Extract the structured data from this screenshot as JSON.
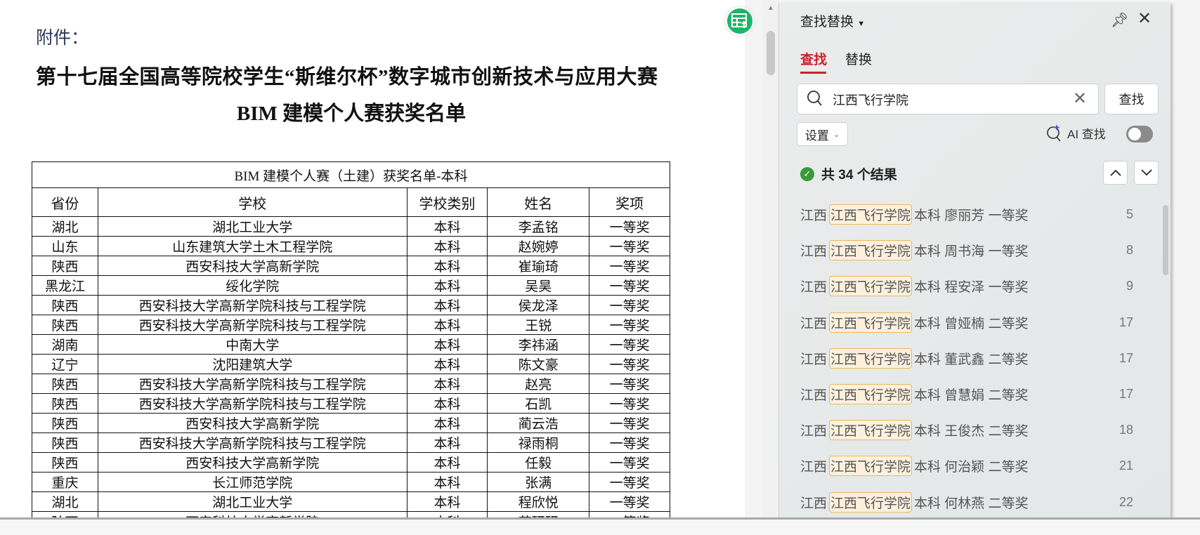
{
  "document": {
    "attachment_label": "附件：",
    "title_line1": "第十七届全国高等院校学生“斯维尔杯”数字城市创新技术与应用大赛",
    "title_line2": "BIM 建模个人赛获奖名单",
    "table": {
      "caption": "BIM 建模个人赛（土建）获奖名单-本科",
      "headers": [
        "省份",
        "学校",
        "学校类别",
        "姓名",
        "奖项"
      ],
      "rows": [
        [
          "湖北",
          "湖北工业大学",
          "本科",
          "李孟铭",
          "一等奖"
        ],
        [
          "山东",
          "山东建筑大学土木工程学院",
          "本科",
          "赵婉婷",
          "一等奖"
        ],
        [
          "陕西",
          "西安科技大学高新学院",
          "本科",
          "崔瑜琦",
          "一等奖"
        ],
        [
          "黑龙江",
          "绥化学院",
          "本科",
          "吴昊",
          "一等奖"
        ],
        [
          "陕西",
          "西安科技大学高新学院科技与工程学院",
          "本科",
          "侯龙泽",
          "一等奖"
        ],
        [
          "陕西",
          "西安科技大学高新学院科技与工程学院",
          "本科",
          "王锐",
          "一等奖"
        ],
        [
          "湖南",
          "中南大学",
          "本科",
          "李祎涵",
          "一等奖"
        ],
        [
          "辽宁",
          "沈阳建筑大学",
          "本科",
          "陈文豪",
          "一等奖"
        ],
        [
          "陕西",
          "西安科技大学高新学院科技与工程学院",
          "本科",
          "赵亮",
          "一等奖"
        ],
        [
          "陕西",
          "西安科技大学高新学院科技与工程学院",
          "本科",
          "石凯",
          "一等奖"
        ],
        [
          "陕西",
          "西安科技大学高新学院",
          "本科",
          "蔺云浩",
          "一等奖"
        ],
        [
          "陕西",
          "西安科技大学高新学院科技与工程学院",
          "本科",
          "禄雨桐",
          "一等奖"
        ],
        [
          "陕西",
          "西安科技大学高新学院",
          "本科",
          "任毅",
          "一等奖"
        ],
        [
          "重庆",
          "长江师范学院",
          "本科",
          "张满",
          "一等奖"
        ],
        [
          "湖北",
          "湖北工业大学",
          "本科",
          "程欣悦",
          "一等奖"
        ],
        [
          "陕西",
          "西安科技大学高新学院",
          "本科",
          "苗研研",
          "一等奖"
        ]
      ]
    }
  },
  "panel": {
    "title": "查找替换",
    "tabs": [
      {
        "label": "查找",
        "active": true
      },
      {
        "label": "替换",
        "active": false
      }
    ],
    "search_value": "江西飞行学院",
    "find_button": "查找",
    "settings_label": "设置",
    "ai_find_label": "AI 查找",
    "ai_find_enabled": false,
    "result_count": "共 34 个结果",
    "results": [
      {
        "prefix": "江西",
        "match": "江西飞行学院",
        "suffix": "本科 廖丽芳 一等奖",
        "page": "5"
      },
      {
        "prefix": "江西",
        "match": "江西飞行学院",
        "suffix": "本科 周书海 一等奖",
        "page": "8"
      },
      {
        "prefix": "江西",
        "match": "江西飞行学院",
        "suffix": "本科 程安泽 一等奖",
        "page": "9"
      },
      {
        "prefix": "江西",
        "match": "江西飞行学院",
        "suffix": "本科 曾娅楠 二等奖",
        "page": "17"
      },
      {
        "prefix": "江西",
        "match": "江西飞行学院",
        "suffix": "本科 董武鑫 二等奖",
        "page": "17"
      },
      {
        "prefix": "江西",
        "match": "江西飞行学院",
        "suffix": "本科 曾慧娟 二等奖",
        "page": "17"
      },
      {
        "prefix": "江西",
        "match": "江西飞行学院",
        "suffix": "本科 王俊杰 二等奖",
        "page": "18"
      },
      {
        "prefix": "江西",
        "match": "江西飞行学院",
        "suffix": "本科 何治颖 二等奖",
        "page": "21"
      },
      {
        "prefix": "江西",
        "match": "江西飞行学院",
        "suffix": "本科 何林燕 二等奖",
        "page": "22"
      }
    ],
    "colors": {
      "accent": "#c8232c",
      "highlight_border": "#eab85a",
      "highlight_bg": "#fdf1dd",
      "success": "#3a9a3a",
      "app_icon": "#1db56a"
    }
  }
}
